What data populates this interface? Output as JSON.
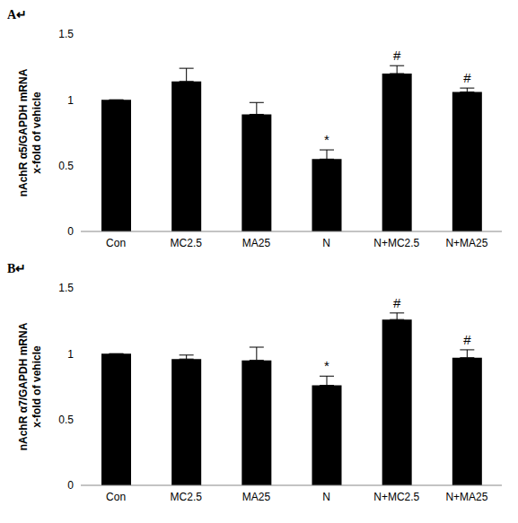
{
  "chart_data": [
    {
      "type": "bar",
      "title": "A↵",
      "categories": [
        "Con",
        "MC2.5",
        "MA25",
        "N",
        "N+MC2.5",
        "N+MA25"
      ],
      "values": [
        1.0,
        1.14,
        0.89,
        0.55,
        1.2,
        1.06
      ],
      "errors": [
        0,
        0.1,
        0.09,
        0.07,
        0.06,
        0.03
      ],
      "annotations": [
        null,
        null,
        null,
        "*",
        "#",
        "#"
      ],
      "y_label": "nAchR α5/GAPDH mRNA\nx-fold of vehicle",
      "color": "#000000",
      "ylim": [
        0,
        1.5
      ],
      "yticks": [
        0,
        0.5,
        1,
        1.5
      ],
      "grid": false
    },
    {
      "type": "bar",
      "title": "B↵",
      "categories": [
        "Con",
        "MC2.5",
        "MA25",
        "N",
        "N+MC2.5",
        "N+MA25"
      ],
      "values": [
        1.0,
        0.96,
        0.95,
        0.76,
        1.26,
        0.97
      ],
      "errors": [
        0,
        0.03,
        0.1,
        0.07,
        0.05,
        0.06
      ],
      "annotations": [
        null,
        null,
        null,
        "*",
        "#",
        "#"
      ],
      "y_label": "nAchR α7/GAPDH mRNA\nx-fold of vehicle",
      "color": "#000000",
      "ylim": [
        0,
        1.5
      ],
      "yticks": [
        0,
        0.5,
        1,
        1.5
      ],
      "grid": false
    }
  ]
}
